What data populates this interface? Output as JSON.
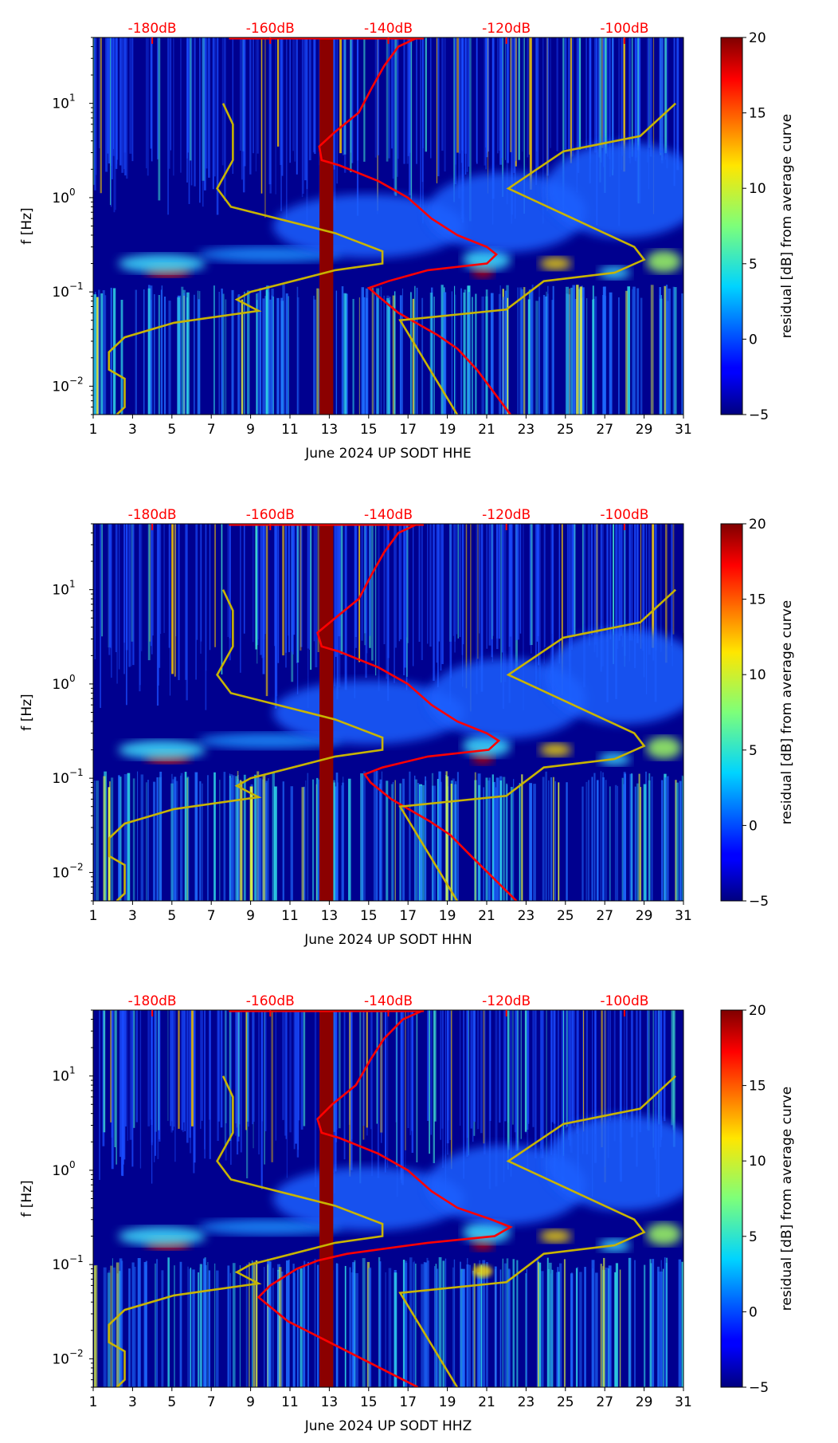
{
  "chart_data": [
    {
      "type": "heatmap",
      "xlabel": "June 2024 UP SODT  HHE",
      "ylabel": "f [Hz]",
      "colorbar_label": "residual [dB] from average curve",
      "xlim": [
        1,
        31
      ],
      "ylim": [
        0.005,
        50
      ],
      "yscale": "log",
      "clim": [
        -5,
        20
      ],
      "x_ticks": [
        "1",
        "3",
        "5",
        "7",
        "9",
        "11",
        "13",
        "15",
        "17",
        "19",
        "21",
        "23",
        "25",
        "27",
        "29",
        "31"
      ],
      "y_ticks": [
        {
          "v": 0.01,
          "b": "10",
          "e": "−2"
        },
        {
          "v": 0.1,
          "b": "10",
          "e": "−1"
        },
        {
          "v": 1,
          "b": "10",
          "e": "0"
        },
        {
          "v": 10,
          "b": "10",
          "e": "1"
        }
      ],
      "cbar_ticks": [
        "−5",
        "0",
        "5",
        "10",
        "15",
        "20"
      ],
      "top_axis": {
        "labels": [
          "-180dB",
          "-160dB",
          "-140dB",
          "-120dB",
          "-100dB"
        ],
        "db_values": [
          -180,
          -160,
          -140,
          -120,
          -100
        ],
        "days": [
          4,
          10,
          16,
          22,
          28
        ],
        "color": "#ff0000"
      },
      "gap_days": [
        12.5,
        13.2
      ],
      "series": [
        {
          "name": "psd-curve-dB",
          "color": "#ff0000",
          "db": [
            -135,
            -138.3,
            -140.7,
            -142.7,
            -145,
            -149,
            -151.7,
            -151.3,
            -148.3,
            -141.7,
            -136.7,
            -132.7,
            -128.3,
            -123.3,
            -121.7,
            -123.3,
            -133.3,
            -140,
            -143.3,
            -141.7,
            -138.3,
            -131.7,
            -128.3,
            -125,
            -119.3
          ],
          "f": [
            50,
            40,
            25,
            15,
            8,
            5,
            3.5,
            2.5,
            2.2,
            1.5,
            1,
            0.6,
            0.4,
            0.3,
            0.25,
            0.2,
            0.17,
            0.13,
            0.11,
            0.09,
            0.06,
            0.035,
            0.025,
            0.015,
            0.005
          ]
        },
        {
          "name": "model-left",
          "color": "#c8b400",
          "day": [
            7.6,
            8.1,
            8.1,
            7.3,
            8.0,
            13.3,
            15.7,
            15.7,
            13.3,
            9.0,
            8.3,
            9.4,
            5.1,
            2.6,
            1.8,
            1.8,
            2.6,
            2.6,
            2.2
          ],
          "f": [
            10,
            6,
            2.5,
            1.25,
            0.8,
            0.42,
            0.27,
            0.2,
            0.17,
            0.1,
            0.083,
            0.063,
            0.047,
            0.033,
            0.023,
            0.015,
            0.012,
            0.006,
            0.005
          ]
        },
        {
          "name": "model-right",
          "color": "#c8b400",
          "day": [
            30.6,
            28.8,
            24.9,
            22.1,
            28.5,
            29.0,
            27.5,
            23.9,
            22.0,
            16.6,
            19.5
          ],
          "f": [
            10,
            4.5,
            3.1,
            1.25,
            0.3,
            0.22,
            0.16,
            0.13,
            0.065,
            0.05,
            0.005
          ]
        }
      ]
    },
    {
      "type": "heatmap",
      "xlabel": "June 2024 UP SODT  HHN",
      "ylabel": "f [Hz]",
      "colorbar_label": "residual [dB] from average curve",
      "xlim": [
        1,
        31
      ],
      "ylim": [
        0.005,
        50
      ],
      "yscale": "log",
      "clim": [
        -5,
        20
      ],
      "x_ticks": [
        "1",
        "3",
        "5",
        "7",
        "9",
        "11",
        "13",
        "15",
        "17",
        "19",
        "21",
        "23",
        "25",
        "27",
        "29",
        "31"
      ],
      "y_ticks": [
        {
          "v": 0.01,
          "b": "10",
          "e": "−2"
        },
        {
          "v": 0.1,
          "b": "10",
          "e": "−1"
        },
        {
          "v": 1,
          "b": "10",
          "e": "0"
        },
        {
          "v": 10,
          "b": "10",
          "e": "1"
        }
      ],
      "cbar_ticks": [
        "−5",
        "0",
        "5",
        "10",
        "15",
        "20"
      ],
      "top_axis": {
        "labels": [
          "-180dB",
          "-160dB",
          "-140dB",
          "-120dB",
          "-100dB"
        ],
        "db_values": [
          -180,
          -160,
          -140,
          -120,
          -100
        ],
        "days": [
          4,
          10,
          16,
          22,
          28
        ],
        "color": "#ff0000"
      },
      "gap_days": [
        12.5,
        13.2
      ],
      "series": [
        {
          "name": "psd-curve-dB",
          "color": "#ff0000",
          "db": [
            -135,
            -138.3,
            -140.7,
            -142.7,
            -145,
            -149,
            -152,
            -151.3,
            -148.3,
            -141.7,
            -136.7,
            -132.7,
            -128.3,
            -123.3,
            -121.3,
            -123,
            -133.3,
            -141,
            -144,
            -143,
            -139.5,
            -133,
            -129.5,
            -126,
            -118.3
          ],
          "f": [
            50,
            40,
            25,
            15,
            8,
            5,
            3.5,
            2.5,
            2.2,
            1.5,
            1,
            0.6,
            0.4,
            0.3,
            0.25,
            0.2,
            0.17,
            0.13,
            0.11,
            0.09,
            0.06,
            0.035,
            0.025,
            0.015,
            0.005
          ]
        },
        {
          "name": "model-left",
          "color": "#c8b400",
          "day": [
            7.6,
            8.1,
            8.1,
            7.3,
            8.0,
            13.3,
            15.7,
            15.7,
            13.3,
            9.0,
            8.3,
            9.4,
            5.1,
            2.6,
            1.8,
            1.8,
            2.6,
            2.6,
            2.2
          ],
          "f": [
            10,
            6,
            2.5,
            1.25,
            0.8,
            0.42,
            0.27,
            0.2,
            0.17,
            0.1,
            0.083,
            0.063,
            0.047,
            0.033,
            0.023,
            0.015,
            0.012,
            0.006,
            0.005
          ]
        },
        {
          "name": "model-right",
          "color": "#c8b400",
          "day": [
            30.6,
            28.8,
            24.9,
            22.1,
            28.5,
            29.0,
            27.5,
            23.9,
            22.0,
            16.6,
            19.5
          ],
          "f": [
            10,
            4.5,
            3.1,
            1.25,
            0.3,
            0.22,
            0.16,
            0.13,
            0.065,
            0.05,
            0.005
          ]
        }
      ]
    },
    {
      "type": "heatmap",
      "xlabel": "June 2024 UP SODT  HHZ",
      "ylabel": "f [Hz]",
      "colorbar_label": "residual [dB] from average curve",
      "xlim": [
        1,
        31
      ],
      "ylim": [
        0.005,
        50
      ],
      "yscale": "log",
      "clim": [
        -5,
        20
      ],
      "x_ticks": [
        "1",
        "3",
        "5",
        "7",
        "9",
        "11",
        "13",
        "15",
        "17",
        "19",
        "21",
        "23",
        "25",
        "27",
        "29",
        "31"
      ],
      "y_ticks": [
        {
          "v": 0.01,
          "b": "10",
          "e": "−2"
        },
        {
          "v": 0.1,
          "b": "10",
          "e": "−1"
        },
        {
          "v": 1,
          "b": "10",
          "e": "0"
        },
        {
          "v": 10,
          "b": "10",
          "e": "1"
        }
      ],
      "cbar_ticks": [
        "−5",
        "0",
        "5",
        "10",
        "15",
        "20"
      ],
      "top_axis": {
        "labels": [
          "-180dB",
          "-160dB",
          "-140dB",
          "-120dB",
          "-100dB"
        ],
        "db_values": [
          -180,
          -160,
          -140,
          -120,
          -100
        ],
        "days": [
          4,
          10,
          16,
          22,
          28
        ],
        "color": "#ff0000"
      },
      "gap_days": [
        12.5,
        13.2
      ],
      "series": [
        {
          "name": "psd-curve-dB",
          "color": "#ff0000",
          "db": [
            -134,
            -137.5,
            -140.7,
            -143,
            -145.5,
            -149.5,
            -152,
            -151.3,
            -148.3,
            -141.7,
            -136.7,
            -132.7,
            -128.3,
            -122.5,
            -119.3,
            -122,
            -133.3,
            -147,
            -152,
            -155.5,
            -160,
            -162,
            -157,
            -150,
            -135
          ],
          "f": [
            50,
            40,
            25,
            15,
            8,
            5,
            3.5,
            2.5,
            2.2,
            1.5,
            1,
            0.6,
            0.4,
            0.3,
            0.25,
            0.2,
            0.17,
            0.13,
            0.11,
            0.09,
            0.06,
            0.045,
            0.025,
            0.015,
            0.005
          ]
        },
        {
          "name": "model-left",
          "color": "#c8b400",
          "day": [
            7.6,
            8.1,
            8.1,
            7.3,
            8.0,
            13.3,
            15.7,
            15.7,
            13.3,
            9.0,
            8.3,
            9.4,
            5.1,
            2.6,
            1.8,
            1.8,
            2.6,
            2.6,
            2.2
          ],
          "f": [
            10,
            6,
            2.5,
            1.25,
            0.8,
            0.42,
            0.27,
            0.2,
            0.17,
            0.1,
            0.083,
            0.063,
            0.047,
            0.033,
            0.023,
            0.015,
            0.012,
            0.006,
            0.005
          ]
        },
        {
          "name": "model-right",
          "color": "#c8b400",
          "day": [
            30.6,
            28.8,
            24.9,
            22.1,
            28.5,
            29.0,
            27.5,
            23.9,
            22.0,
            16.6,
            19.5
          ],
          "f": [
            10,
            4.5,
            3.1,
            1.25,
            0.3,
            0.22,
            0.16,
            0.13,
            0.065,
            0.05,
            0.005
          ]
        }
      ]
    }
  ]
}
